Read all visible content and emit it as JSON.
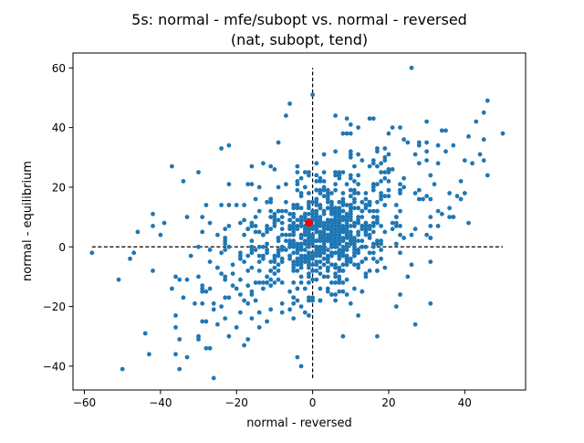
{
  "chart_data": {
    "type": "scatter",
    "title_line1": "5s: normal - mfe/subopt vs. normal - reversed",
    "title_line2": "(nat, subopt, tend)",
    "xlabel": "normal - reversed",
    "ylabel": "normal - equilibrium",
    "xlim": [
      -63,
      56
    ],
    "ylim": [
      -48,
      65
    ],
    "xticks": [
      -60,
      -40,
      -20,
      0,
      20,
      40
    ],
    "yticks": [
      -40,
      -20,
      0,
      20,
      40,
      60
    ],
    "xtick_labels": [
      "−60",
      "−40",
      "−20",
      "0",
      "20",
      "40"
    ],
    "ytick_labels": [
      "−40",
      "−20",
      "0",
      "20",
      "40",
      "60"
    ],
    "grid": false,
    "legend": "none",
    "point_color": "#1f77b4",
    "highlight_color": "#ff0000",
    "reference_lines": {
      "horizontal": {
        "y": 0,
        "x_from": -58,
        "x_to": 50,
        "style": "dashed",
        "color": "#000000"
      },
      "vertical": {
        "x": 0,
        "y_from": -44,
        "y_to": 60,
        "style": "dashed",
        "color": "#000000"
      }
    },
    "highlight_point": {
      "x": -1,
      "y": 8
    },
    "outlier_points": [
      {
        "x": -58,
        "y": -2
      },
      {
        "x": -51,
        "y": -11
      },
      {
        "x": -50,
        "y": -41
      },
      {
        "x": -44,
        "y": -29
      },
      {
        "x": -35,
        "y": -41
      },
      {
        "x": -35,
        "y": -31
      },
      {
        "x": -33,
        "y": -37
      },
      {
        "x": -26,
        "y": -44
      },
      {
        "x": -25,
        "y": -26
      },
      {
        "x": -28,
        "y": -34
      },
      {
        "x": -4,
        "y": -37
      },
      {
        "x": -3,
        "y": -40
      },
      {
        "x": 17,
        "y": -30
      },
      {
        "x": 27,
        "y": -26
      },
      {
        "x": 31,
        "y": -19
      },
      {
        "x": 31,
        "y": -5
      },
      {
        "x": 26,
        "y": 60
      },
      {
        "x": 0,
        "y": 51
      },
      {
        "x": -6,
        "y": 48
      },
      {
        "x": -7,
        "y": 44
      },
      {
        "x": 46,
        "y": 49
      },
      {
        "x": 50,
        "y": 38
      },
      {
        "x": 43,
        "y": 42
      },
      {
        "x": 45,
        "y": 45
      },
      {
        "x": 36,
        "y": 10
      },
      {
        "x": 40,
        "y": 18
      },
      {
        "x": 33,
        "y": 12
      },
      {
        "x": -47,
        "y": -2
      },
      {
        "x": -46,
        "y": 5
      },
      {
        "x": -42,
        "y": 7
      },
      {
        "x": -40,
        "y": 4
      },
      {
        "x": -39,
        "y": 8
      },
      {
        "x": -36,
        "y": -10
      },
      {
        "x": -31,
        "y": -19
      },
      {
        "x": -29,
        "y": 10
      },
      {
        "x": -22,
        "y": 34
      },
      {
        "x": -34,
        "y": 22
      },
      {
        "x": -30,
        "y": 25
      },
      {
        "x": -20,
        "y": -27
      },
      {
        "x": -12,
        "y": -25
      },
      {
        "x": 12,
        "y": -23
      },
      {
        "x": 8,
        "y": -30
      },
      {
        "x": 22,
        "y": -20
      },
      {
        "x": 25,
        "y": -10
      },
      {
        "x": 0,
        "y": -18
      },
      {
        "x": 2,
        "y": -14
      },
      {
        "x": 12,
        "y": 40
      },
      {
        "x": 16,
        "y": 43
      },
      {
        "x": 6,
        "y": 44
      },
      {
        "x": 20,
        "y": 38
      },
      {
        "x": 30,
        "y": 35
      },
      {
        "x": 35,
        "y": 32
      }
    ],
    "cloud_summary": {
      "approx_point_count": 950,
      "center": {
        "x": 3,
        "y": 6
      },
      "spread": {
        "x": 17,
        "y": 15
      },
      "correlation": 0.55
    }
  }
}
